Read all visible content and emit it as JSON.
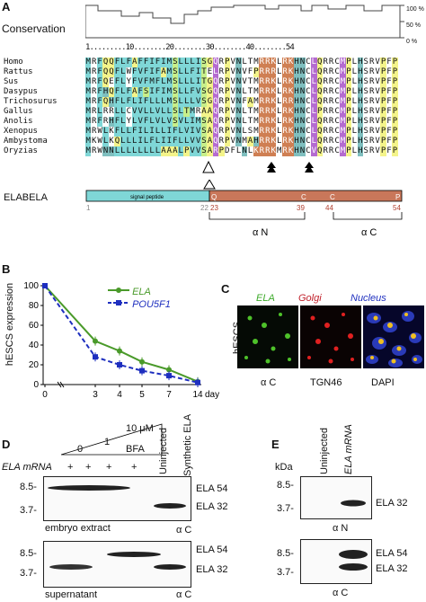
{
  "panelA": {
    "label": "A",
    "conservation_title": "Conservation",
    "conservation_scale": [
      "100 %",
      "50 %",
      "0 %"
    ],
    "ruler": "1.........10........20........30........40........54",
    "ruler_marks": [
      "1",
      "10",
      "20",
      "30",
      "40",
      "54"
    ],
    "species": [
      "Homo",
      "Rattus",
      "Sus",
      "Dasypus",
      "Trichosurus",
      "Gallus",
      "Anolis",
      "Xenopus",
      "Ambystoma",
      "Oryzias"
    ],
    "sequences": [
      "MRFQQFLFAFFIFIMSLLLISGQRPVNLTMRRKLRKHNCLQRRCMPLHSRVPFP",
      "MRFQQFLWFVFIFAMSLLFITELRPVNVFPRRRLRKHNCLQRRCMPLHSRVPFP",
      "MRFQEFLYFVFMFLMSLLLITGQRPVNVTMRRKLRKHNCLQRRCMPLHSRVPFP",
      "MRFHQFLFAFSIFIMSLLFVSGQRPVNLTMRRKLRKHNCLQRRCMPLHSRVPFP",
      "MRFQHFLFLIFLLLMSLLLVSGQRPVNFAMRRKLRRHNCLQRRCMPLHSRVPFP",
      "MRLRRLLCVVLLVLLSLTMRAAQRPVNLTMRRKLRKHNCLPRRCMPLHSRVPFP",
      "MRFRHFLYLVFLVLVSVLIMSAQRPVNLTMRRKLRKHNCLQRRCMPLHSRVPFP",
      "MRWLKFLLFILILLIFLVIVSAQRPVNLSMRRKLRKHNCLQRRCMPLHSRVPFP",
      "MKWLKQLLLILFLIIFLLVVSAQRPVNMAHRRKLRKHNCLQRRCMPLHSRVPFP",
      "MRWNNLLLLLLLLAAALPVVSARPDFLNLKRRKMRKHNCVQRRCMPLHSRVPFP"
    ],
    "elabela_label": "ELABELA",
    "signal_peptide": "signal peptide",
    "domain_letters": [
      "Q",
      "C",
      "C",
      "P"
    ],
    "positions": [
      "1",
      "22",
      "23",
      "39",
      "44",
      "54"
    ],
    "alphaN": "α N",
    "alphaC": "α C"
  },
  "panelB": {
    "label": "B",
    "ylabel": "hESCS expression",
    "xlabel": "days",
    "legend": [
      "ELA",
      "POU5F1"
    ]
  },
  "chart_data": {
    "type": "line",
    "x": [
      0,
      3,
      4,
      5,
      7,
      14
    ],
    "xticks": [
      "0",
      "3",
      "4",
      "5",
      "7",
      "14"
    ],
    "yticks": [
      "0",
      "20",
      "40",
      "60",
      "80",
      "100"
    ],
    "ylim": [
      0,
      100
    ],
    "ylabel": "hESCS expression",
    "xlabel": "days",
    "series": [
      {
        "name": "ELA",
        "values": [
          100,
          44,
          34,
          23,
          15,
          3
        ],
        "color": "#4a9a2a"
      },
      {
        "name": "POU5F1",
        "values": [
          100,
          28,
          20,
          14,
          9,
          2
        ],
        "color": "#1e2fbf"
      }
    ]
  },
  "panelC": {
    "label": "C",
    "titles": [
      "ELA",
      "Golgi",
      "Nucleus"
    ],
    "title_colors": [
      "#3caa2a",
      "#c0202a",
      "#1e2fbf"
    ],
    "side": "hESCS",
    "bottom": [
      "α C",
      "TGN46",
      "DAPI"
    ]
  },
  "panelD": {
    "label": "D",
    "bfa_conc": "10 μM",
    "bfa_0": "0",
    "bfa_1": "1",
    "bfa": "BFA",
    "uninjected": "Uninjected",
    "synthetic": "Synthetic ELA",
    "ela_mrna": "ELA mRNA",
    "plus": "+",
    "mw_top": [
      "8.5-",
      "3.7-"
    ],
    "mw_bottom": [
      "8.5-",
      "3.7-"
    ],
    "band_top": [
      "ELA 54",
      "ELA 32"
    ],
    "band_bottom": [
      "ELA 54",
      "ELA 32"
    ],
    "caption_top": "embryo extract",
    "caption_bottom": "supernatant",
    "ab_top": "α C",
    "ab_bottom": "α C"
  },
  "panelE": {
    "label": "E",
    "kda": "kDa",
    "uninjected": "Uninjected",
    "ela_mrna": "ELA mRNA",
    "mw_top": [
      "8.5-",
      "3.7-"
    ],
    "mw_bottom": [
      "8.5-",
      "3.7-"
    ],
    "band_top": "ELA 32",
    "band_bottom": [
      "ELA 54",
      "ELA 32"
    ],
    "ab_top": "α N",
    "ab_bottom": "α C"
  }
}
